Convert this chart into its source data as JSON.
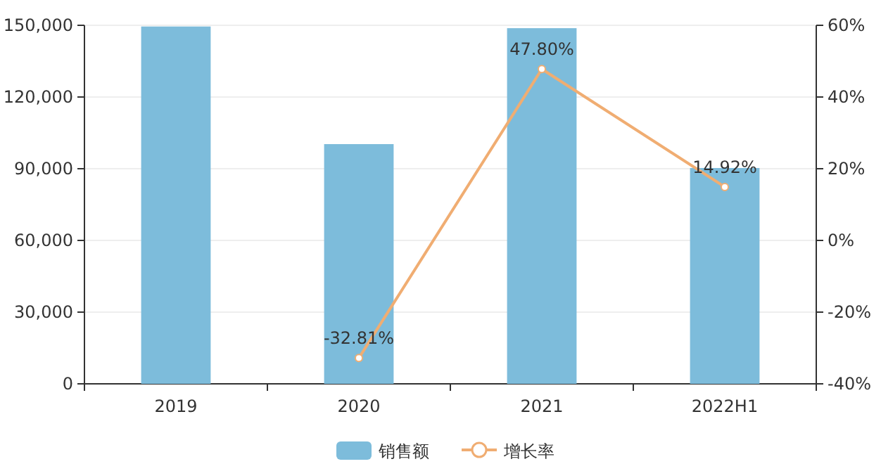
{
  "chart_data": {
    "type": "bar",
    "categories": [
      "2019",
      "2020",
      "2021",
      "2022H1"
    ],
    "series": [
      {
        "name": "销售额",
        "color": "#7dbcdb",
        "values": [
          149500,
          100300,
          148800,
          90300
        ]
      },
      {
        "name": "增长率",
        "type": "line",
        "axis": "y2",
        "color": "#f0ad72",
        "values": [
          null,
          -32.81,
          47.8,
          14.92
        ],
        "value_labels": [
          null,
          "-32.81%",
          "47.80%",
          "14.92%"
        ]
      }
    ],
    "ylim": [
      0,
      150000
    ],
    "yticks": [
      {
        "value": 0,
        "label": "0"
      },
      {
        "value": 30000,
        "label": "30,000"
      },
      {
        "value": 60000,
        "label": "60,000"
      },
      {
        "value": 90000,
        "label": "90,000"
      },
      {
        "value": 120000,
        "label": "120,000"
      },
      {
        "value": 150000,
        "label": "150,000"
      }
    ],
    "y2lim": [
      -40,
      60
    ],
    "y2ticks": [
      {
        "value": -40,
        "label": "-40%"
      },
      {
        "value": -20,
        "label": "-20%"
      },
      {
        "value": 0,
        "label": "0%"
      },
      {
        "value": 20,
        "label": "20%"
      },
      {
        "value": 40,
        "label": "40%"
      },
      {
        "value": 60,
        "label": "60%"
      }
    ],
    "grid": "y",
    "legend": "bottom",
    "marker": "circle"
  }
}
